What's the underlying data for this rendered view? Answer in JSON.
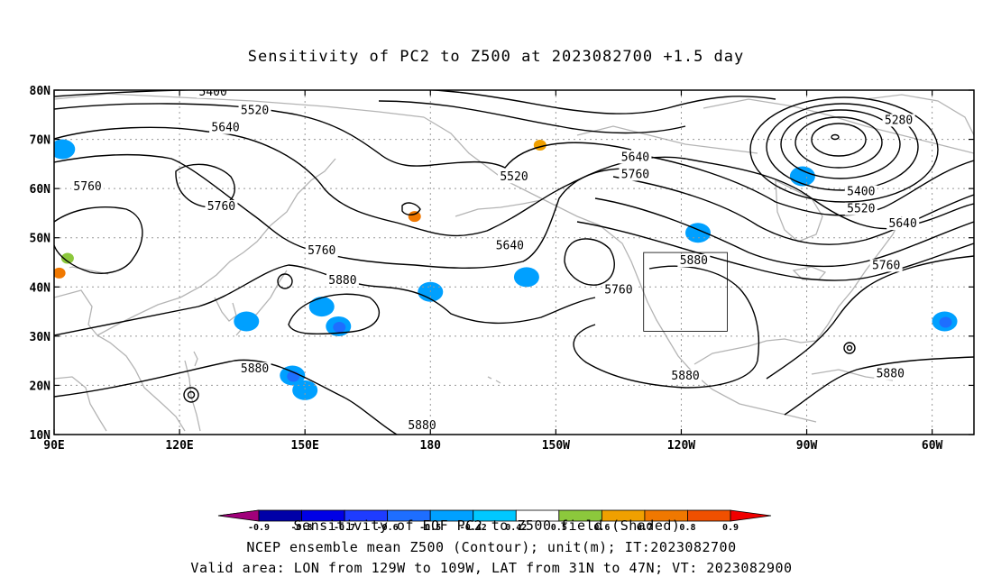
{
  "chart_data": {
    "type": "heatmap",
    "title": "Sensitivity of PC2 to Z500 at 2023082700 +1.5 day",
    "map_projection": "cylindrical equidistant",
    "lon_range": [
      90,
      310
    ],
    "lat_range": [
      10,
      80
    ],
    "grid": true,
    "x_tick_labels": [
      "90E",
      "120E",
      "150E",
      "180",
      "150W",
      "120W",
      "90W",
      "60W"
    ],
    "x_tick_lons": [
      90,
      120,
      150,
      180,
      210,
      240,
      270,
      300
    ],
    "y_tick_labels": [
      "10N",
      "20N",
      "30N",
      "40N",
      "50N",
      "60N",
      "70N",
      "80N"
    ],
    "y_tick_lats": [
      10,
      20,
      30,
      40,
      50,
      60,
      70,
      80
    ],
    "contour_field": "Z500 ensemble mean (m)",
    "contour_labels": [
      {
        "text": "5400",
        "lon": 128,
        "lat": 79.3
      },
      {
        "text": "5520",
        "lon": 138,
        "lat": 75.5
      },
      {
        "text": "5640",
        "lon": 131,
        "lat": 72
      },
      {
        "text": "5760",
        "lon": 98,
        "lat": 60
      },
      {
        "text": "5760",
        "lon": 130,
        "lat": 56
      },
      {
        "text": "5520",
        "lon": 200,
        "lat": 62
      },
      {
        "text": "5640",
        "lon": 199,
        "lat": 48
      },
      {
        "text": "5760",
        "lon": 154,
        "lat": 47
      },
      {
        "text": "5880",
        "lon": 159,
        "lat": 41
      },
      {
        "text": "5640",
        "lon": 229,
        "lat": 66
      },
      {
        "text": "5760",
        "lon": 229,
        "lat": 62.5
      },
      {
        "text": "5760",
        "lon": 225,
        "lat": 39
      },
      {
        "text": "5880",
        "lon": 243,
        "lat": 45
      },
      {
        "text": "5280",
        "lon": 292,
        "lat": 73.5
      },
      {
        "text": "5400",
        "lon": 283,
        "lat": 59
      },
      {
        "text": "5520",
        "lon": 283,
        "lat": 55.5
      },
      {
        "text": "5640",
        "lon": 293,
        "lat": 52.5
      },
      {
        "text": "5760",
        "lon": 289,
        "lat": 44
      },
      {
        "text": "5880",
        "lon": 138,
        "lat": 23
      },
      {
        "text": "5880",
        "lon": 178,
        "lat": 11.5
      },
      {
        "text": "5880",
        "lon": 241,
        "lat": 21.5
      },
      {
        "text": "5880",
        "lon": 290,
        "lat": 22
      }
    ],
    "shaded_field": "Sensitivity of EOF PC2 to Z500 field",
    "shading_levels": [
      "-0.9",
      "-0.8",
      "-0.7",
      "-0.6",
      "-0.5",
      "-0.42",
      "0.42",
      "0.5",
      "0.6",
      "0.7",
      "0.8",
      "0.9"
    ],
    "shading_colors": [
      "#a0007a",
      "#0000a8",
      "#0000e6",
      "#1e3cff",
      "#1e6eff",
      "#00a0ff",
      "#00c8ff",
      "#ffffff",
      "#8cc83c",
      "#f0a000",
      "#f07800",
      "#f05000",
      "#f00000",
      "#ff80c8"
    ],
    "shaded_regions": [
      {
        "lon": 154,
        "lat": 36,
        "value": -0.5
      },
      {
        "lon": 158,
        "lat": 32,
        "value": -0.6
      },
      {
        "lon": 147,
        "lat": 22,
        "value": -0.6
      },
      {
        "lon": 150,
        "lat": 19,
        "value": -0.5
      },
      {
        "lon": 136,
        "lat": 33,
        "value": -0.5
      },
      {
        "lon": 91,
        "lat": 43,
        "value": 0.7
      },
      {
        "lon": 93,
        "lat": 46,
        "value": 0.5
      },
      {
        "lon": 206,
        "lat": 69,
        "value": 0.6
      },
      {
        "lon": 176,
        "lat": 54.5,
        "value": 0.7
      },
      {
        "lon": 244,
        "lat": 51,
        "value": -0.5
      },
      {
        "lon": 303,
        "lat": 33,
        "value": -0.6
      },
      {
        "lon": 269,
        "lat": 62.5,
        "value": -0.5
      },
      {
        "lon": 203,
        "lat": 42,
        "value": -0.5
      },
      {
        "lon": 92,
        "lat": 68,
        "value": -0.5
      },
      {
        "lon": 180,
        "lat": 39,
        "value": -0.5
      }
    ],
    "valid_area_box": {
      "lon": [
        231,
        251
      ],
      "lat": [
        31,
        47
      ]
    },
    "colorbar_title": "Sensitivity of EOF PC2 to Z500 field (Shaded)",
    "captions": [
      "NCEP ensemble mean Z500 (Contour); unit(m); IT:2023082700",
      "Valid area: LON from 129W to 109W, LAT from 31N to 47N; VT: 2023082900"
    ]
  }
}
